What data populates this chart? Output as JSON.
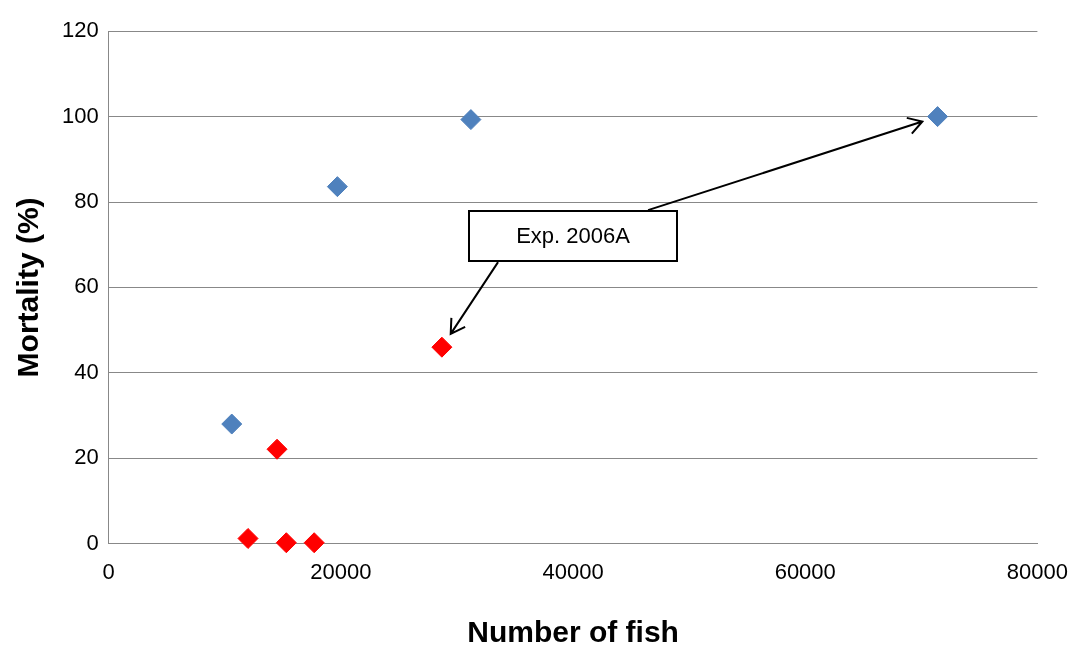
{
  "chart_data": {
    "type": "scatter",
    "xlabel": "Number of fish",
    "ylabel": "Mortality (%)",
    "xlim": [
      0,
      80000
    ],
    "xticks": [
      0,
      20000,
      40000,
      60000,
      80000
    ],
    "ylim": [
      0,
      120
    ],
    "yticks": [
      0,
      20,
      40,
      60,
      80,
      100,
      120
    ],
    "grid": "y",
    "legend": false,
    "marker": "diamond",
    "series": [
      {
        "color": "#4f81bd",
        "x": [
          10600,
          19700,
          31200,
          71400
        ],
        "values": [
          28,
          83.6,
          99.3,
          100
        ]
      },
      {
        "color": "#ff0000",
        "x": [
          12000,
          14500,
          15300,
          17700,
          28700
        ],
        "values": [
          1.2,
          22.1,
          0.2,
          0.2,
          46
        ]
      }
    ],
    "annotations": [
      "Exp. 2006A"
    ]
  }
}
